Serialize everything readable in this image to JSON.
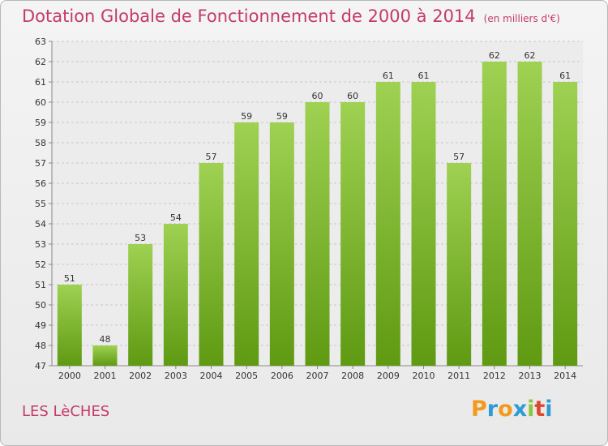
{
  "header": {
    "title": "Dotation Globale de Fonctionnement de 2000 à 2014",
    "unit": "(en milliers d'€)"
  },
  "footer": {
    "commune": "LES LèCHES",
    "logo": [
      "P",
      "r",
      "o",
      "x",
      "i",
      "t",
      "i"
    ]
  },
  "colors": {
    "title": "#c43a6a",
    "bar_top": "#9fd152",
    "bar_bottom": "#5f9a12",
    "logo": [
      "#f39a1e",
      "#2d9bd6",
      "#f39a1e",
      "#2d9bd6",
      "#8cc63e",
      "#e0482e",
      "#2d9bd6"
    ]
  },
  "chart_data": {
    "type": "bar",
    "title": "Dotation Globale de Fonctionnement de 2000 à 2014",
    "subtitle": "(en milliers d'€)",
    "categories": [
      "2000",
      "2001",
      "2002",
      "2003",
      "2004",
      "2005",
      "2006",
      "2007",
      "2008",
      "2009",
      "2010",
      "2011",
      "2012",
      "2013",
      "2014"
    ],
    "values": [
      51,
      48,
      53,
      54,
      57,
      59,
      59,
      60,
      60,
      61,
      61,
      57,
      62,
      62,
      61
    ],
    "ylim": [
      47,
      63
    ],
    "yticks": [
      47,
      48,
      49,
      50,
      51,
      52,
      53,
      54,
      55,
      56,
      57,
      58,
      59,
      60,
      61,
      62,
      63
    ],
    "grid": true,
    "legend": "none"
  }
}
